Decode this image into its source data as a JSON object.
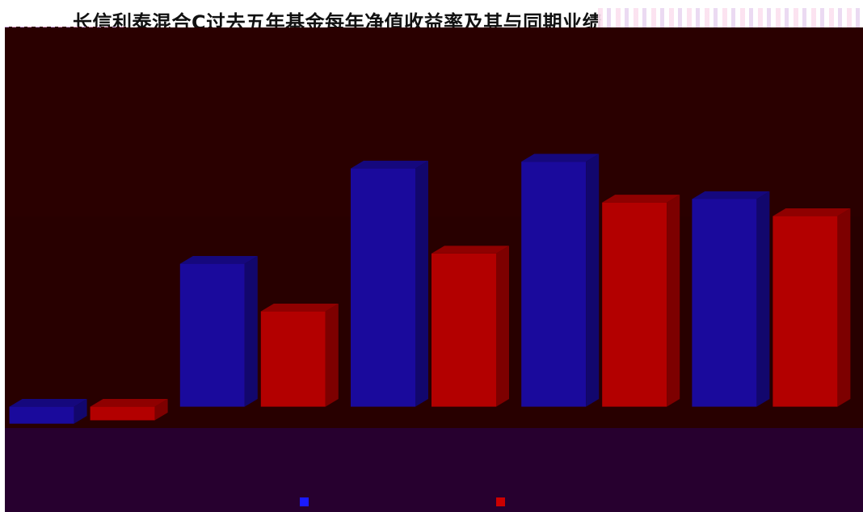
{
  "title": "长信利泰混合C过去五年基金每年净值收益率及其与同期业绩",
  "chart_data": {
    "type": "bar",
    "categories": [
      "",
      "",
      "",
      "",
      ""
    ],
    "series": [
      {
        "name": "",
        "color": "#1a0a9c",
        "values": [
          -2.5,
          21.0,
          35.0,
          36.0,
          30.5
        ]
      },
      {
        "name": "",
        "color": "#b30000",
        "values": [
          -2.0,
          14.0,
          22.5,
          30.0,
          28.0
        ]
      }
    ],
    "ylim": [
      -15,
      55
    ],
    "grid": false,
    "legend_position": "bottom"
  }
}
